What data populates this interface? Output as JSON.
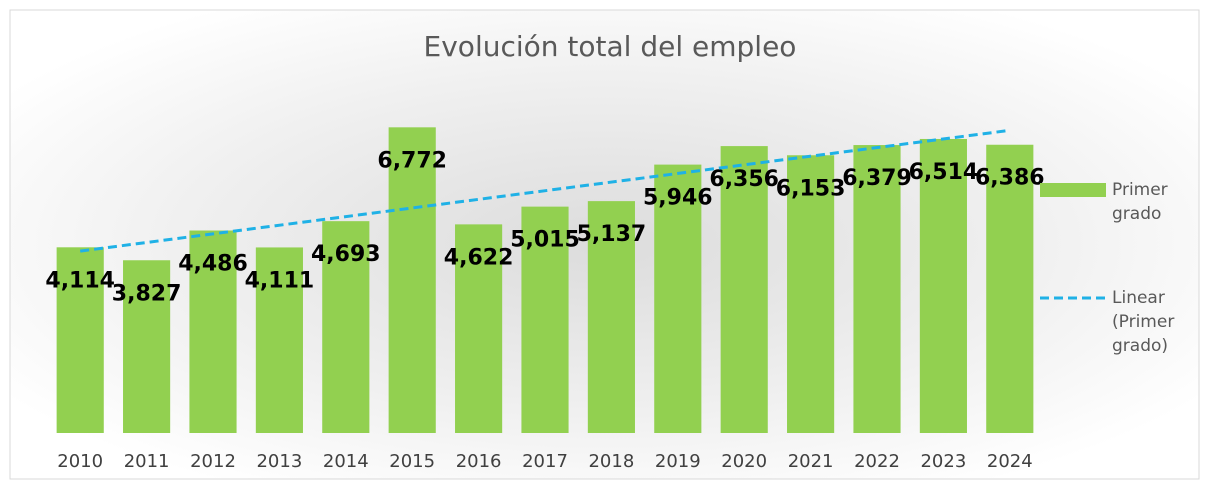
{
  "chart_data": {
    "type": "bar",
    "title": "Evolución total del empleo",
    "categories": [
      "2010",
      "2011",
      "2012",
      "2013",
      "2014",
      "2015",
      "2016",
      "2017",
      "2018",
      "2019",
      "2020",
      "2021",
      "2022",
      "2023",
      "2024"
    ],
    "series": [
      {
        "name": "Primer grado",
        "color": "#92d050",
        "values": [
          4114,
          3827,
          4486,
          4111,
          4693,
          6772,
          4622,
          5015,
          5137,
          5946,
          6356,
          6153,
          6379,
          6514,
          6386
        ],
        "value_labels": [
          "4,114",
          "3,827",
          "4,486",
          "4,111",
          "4,693",
          "6,772",
          "4,622",
          "5,015",
          "5,137",
          "5,946",
          "6,356",
          "6,153",
          "6,379",
          "6,514",
          "6,386"
        ]
      }
    ],
    "trendline": {
      "name": "Linear (Primer grado)",
      "type": "linear",
      "color": "#1fb1e6"
    },
    "ylim": [
      0,
      7200
    ],
    "legend": "right"
  }
}
